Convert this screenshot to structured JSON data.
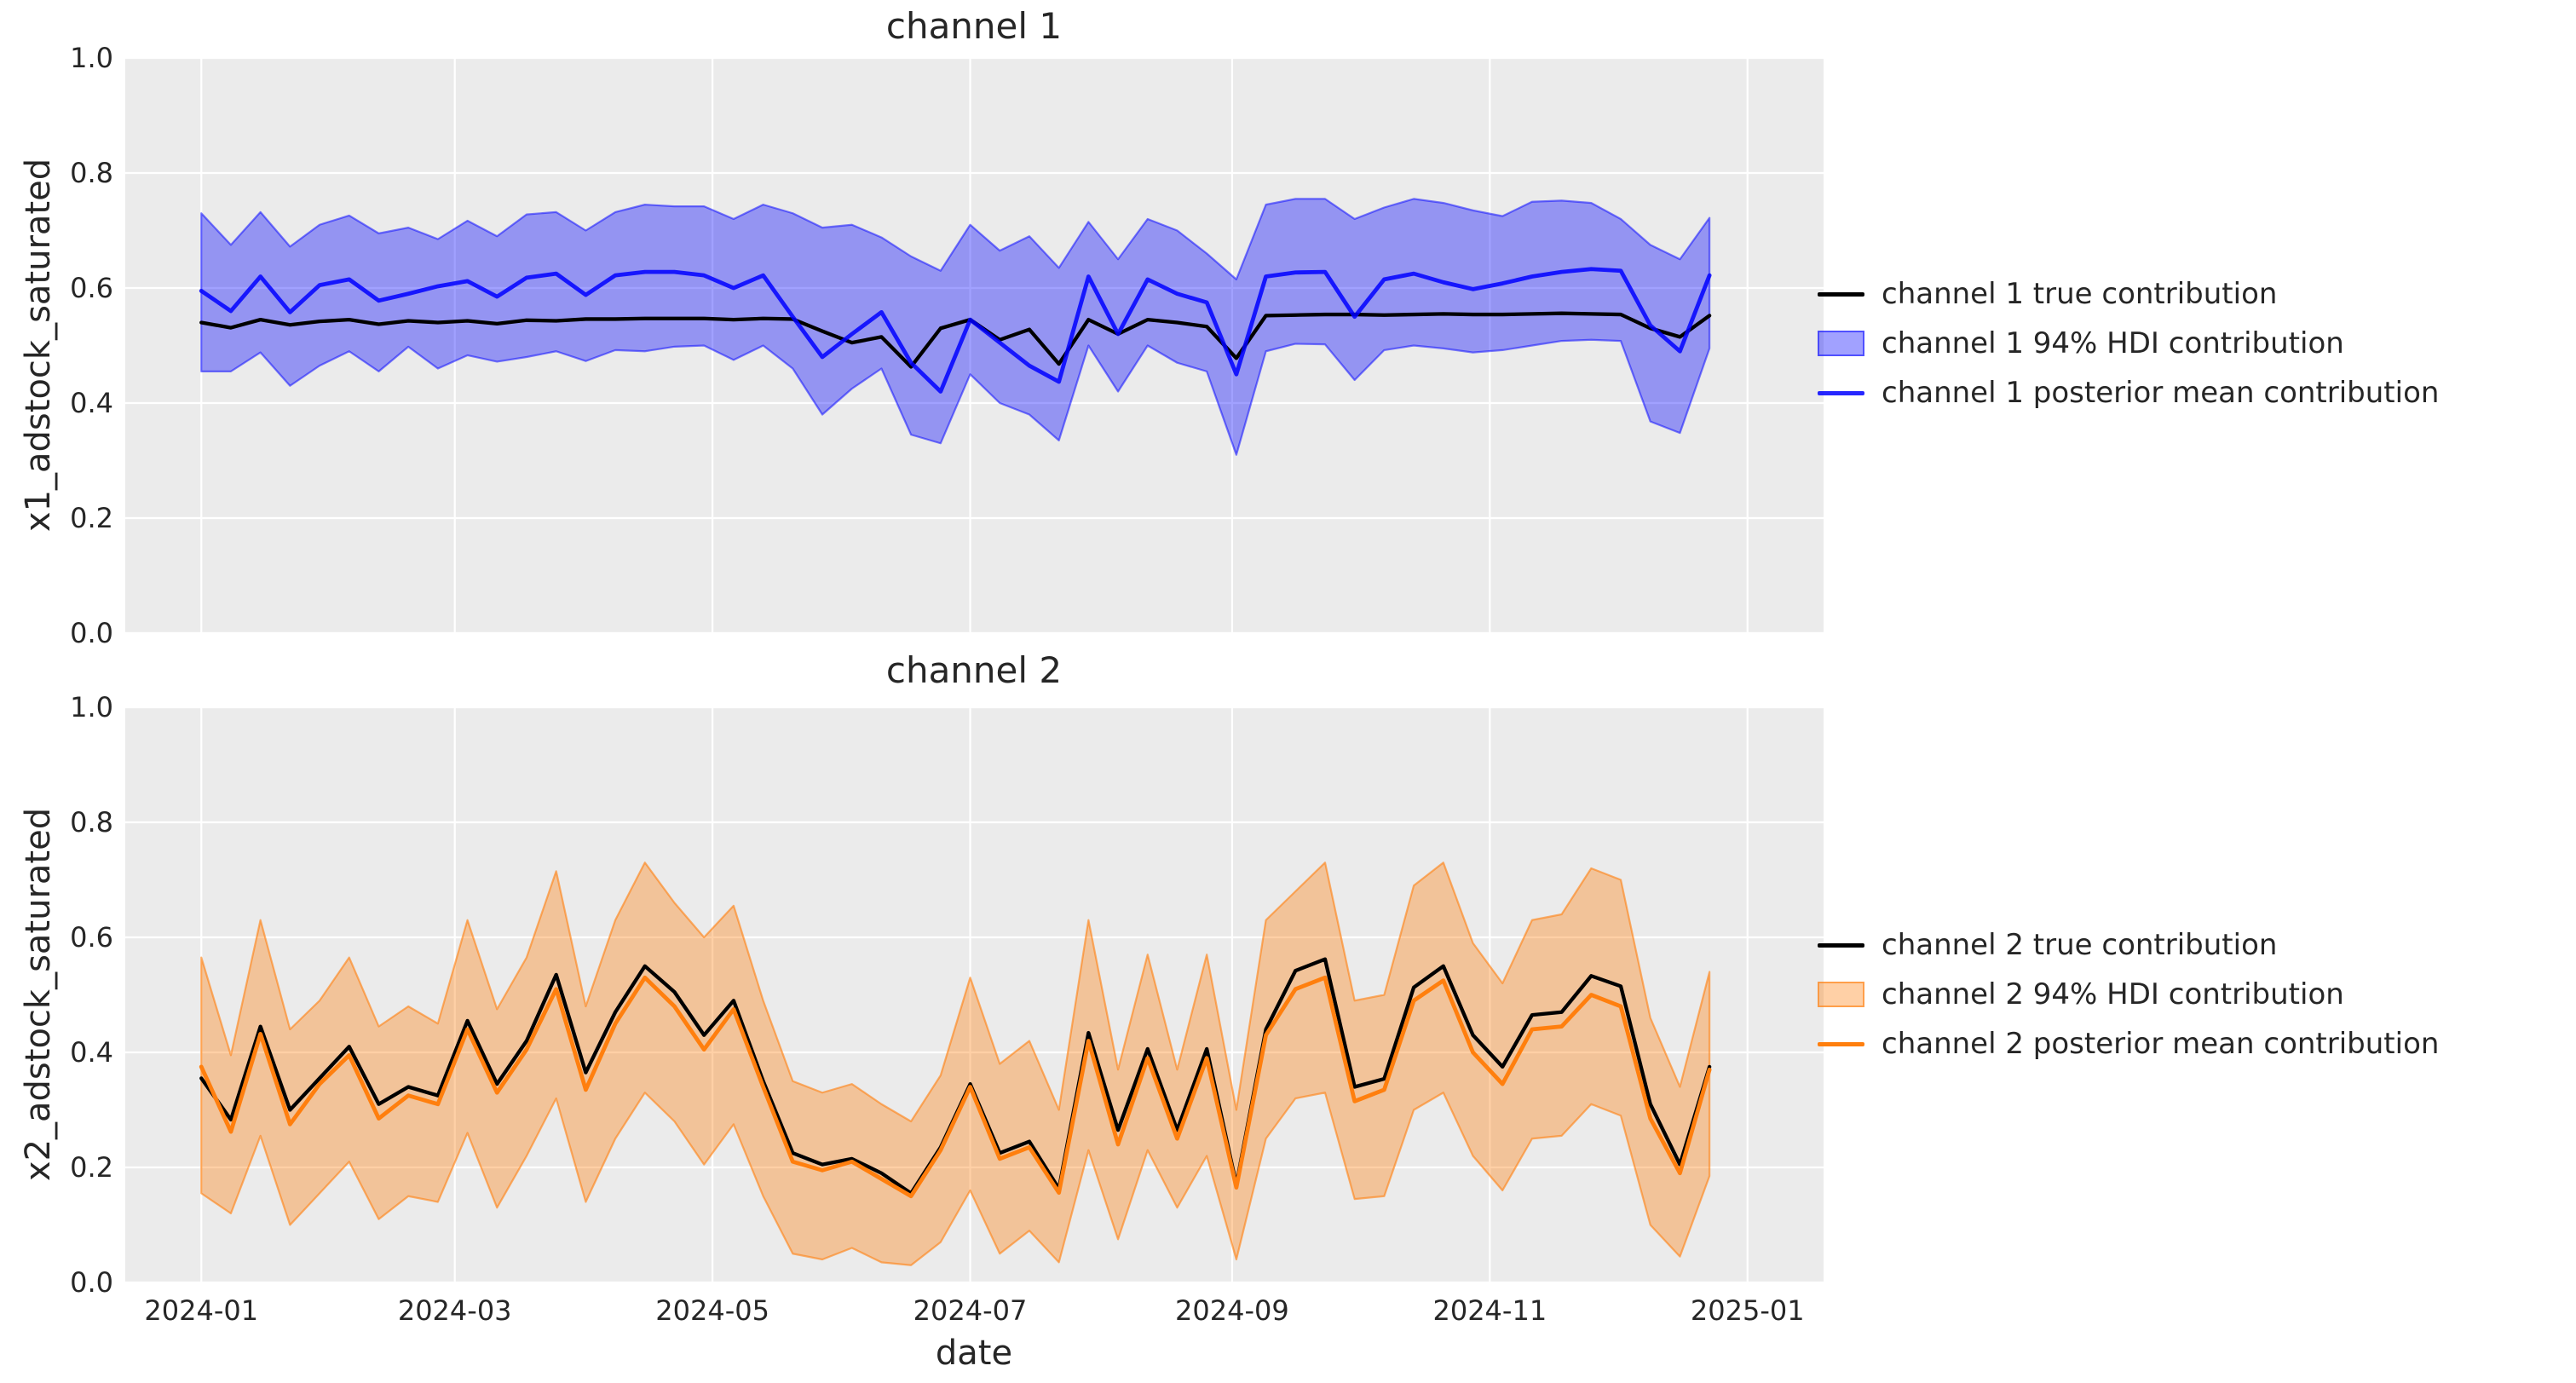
{
  "xlabel": "date",
  "text_color": "#262626",
  "xticks": {
    "t_days": [
      0,
      60,
      121,
      182,
      244,
      305,
      366
    ],
    "labels": [
      "2024-01",
      "2024-03",
      "2024-05",
      "2024-07",
      "2024-09",
      "2024-11",
      "2025-01"
    ]
  },
  "chart_data": [
    {
      "type": "line",
      "title": "channel 1",
      "ylabel": "x1_adstock_saturated",
      "xlabel": "",
      "ylim": [
        0.0,
        1.0
      ],
      "yticks": [
        0.0,
        0.2,
        0.4,
        0.6,
        0.8,
        1.0
      ],
      "ytick_labels": [
        "0.0",
        "0.2",
        "0.4",
        "0.6",
        "0.8",
        "1.0"
      ],
      "grid": true,
      "background": "#ebebeb",
      "gridline_color": "#ffffff",
      "legend_position": "right",
      "x_frequency": "weekly",
      "dates": [
        "2024-01-01",
        "2024-01-08",
        "2024-01-15",
        "2024-01-22",
        "2024-01-29",
        "2024-02-05",
        "2024-02-12",
        "2024-02-19",
        "2024-02-26",
        "2024-03-04",
        "2024-03-11",
        "2024-03-18",
        "2024-03-25",
        "2024-04-01",
        "2024-04-08",
        "2024-04-15",
        "2024-04-22",
        "2024-04-29",
        "2024-05-06",
        "2024-05-13",
        "2024-05-20",
        "2024-05-27",
        "2024-06-03",
        "2024-06-10",
        "2024-06-17",
        "2024-06-24",
        "2024-07-01",
        "2024-07-08",
        "2024-07-15",
        "2024-07-22",
        "2024-07-29",
        "2024-08-05",
        "2024-08-12",
        "2024-08-19",
        "2024-08-26",
        "2024-09-02",
        "2024-09-09",
        "2024-09-16",
        "2024-09-23",
        "2024-09-30",
        "2024-10-07",
        "2024-10-14",
        "2024-10-21",
        "2024-10-28",
        "2024-11-04",
        "2024-11-11",
        "2024-11-18",
        "2024-11-25",
        "2024-12-02",
        "2024-12-09",
        "2024-12-16",
        "2024-12-23"
      ],
      "series": [
        {
          "name": "channel 1 true contribution",
          "style": "line",
          "color": "#000000",
          "opacity": 1,
          "values": [
            0.54,
            0.531,
            0.545,
            0.536,
            0.542,
            0.545,
            0.537,
            0.543,
            0.54,
            0.543,
            0.538,
            0.544,
            0.543,
            0.546,
            0.546,
            0.547,
            0.547,
            0.547,
            0.545,
            0.547,
            0.546,
            0.525,
            0.505,
            0.515,
            0.463,
            0.53,
            0.545,
            0.51,
            0.528,
            0.468,
            0.545,
            0.52,
            0.545,
            0.54,
            0.533,
            0.478,
            0.552,
            0.553,
            0.554,
            0.554,
            0.553,
            0.554,
            0.555,
            0.554,
            0.554,
            0.555,
            0.556,
            0.555,
            0.554,
            0.53,
            0.515,
            0.552
          ]
        },
        {
          "name": "channel 1 94% HDI contribution",
          "style": "band",
          "color": "#0000ff",
          "fill_opacity": 0.37,
          "edge_opacity": 0.5,
          "low": [
            0.455,
            0.455,
            0.488,
            0.43,
            0.465,
            0.49,
            0.455,
            0.498,
            0.46,
            0.483,
            0.472,
            0.48,
            0.49,
            0.473,
            0.492,
            0.49,
            0.498,
            0.5,
            0.475,
            0.5,
            0.46,
            0.38,
            0.425,
            0.46,
            0.345,
            0.33,
            0.45,
            0.4,
            0.38,
            0.335,
            0.5,
            0.42,
            0.5,
            0.47,
            0.455,
            0.31,
            0.49,
            0.503,
            0.502,
            0.44,
            0.492,
            0.5,
            0.495,
            0.488,
            0.492,
            0.5,
            0.508,
            0.51,
            0.508,
            0.368,
            0.348,
            0.495
          ],
          "high": [
            0.73,
            0.675,
            0.732,
            0.672,
            0.71,
            0.726,
            0.695,
            0.705,
            0.685,
            0.717,
            0.69,
            0.728,
            0.732,
            0.7,
            0.732,
            0.745,
            0.742,
            0.742,
            0.72,
            0.745,
            0.73,
            0.705,
            0.71,
            0.688,
            0.655,
            0.63,
            0.71,
            0.665,
            0.69,
            0.635,
            0.715,
            0.65,
            0.72,
            0.7,
            0.66,
            0.615,
            0.745,
            0.755,
            0.755,
            0.72,
            0.74,
            0.755,
            0.748,
            0.735,
            0.725,
            0.75,
            0.752,
            0.748,
            0.72,
            0.675,
            0.65,
            0.722
          ]
        },
        {
          "name": "channel 1 posterior mean contribution",
          "style": "line",
          "color": "#0000ff",
          "opacity": 0.85,
          "values": [
            0.595,
            0.56,
            0.62,
            0.558,
            0.605,
            0.615,
            0.578,
            0.59,
            0.603,
            0.612,
            0.585,
            0.618,
            0.625,
            0.588,
            0.622,
            0.628,
            0.628,
            0.622,
            0.6,
            0.622,
            0.55,
            0.48,
            0.52,
            0.558,
            0.47,
            0.42,
            0.545,
            0.505,
            0.465,
            0.437,
            0.62,
            0.52,
            0.615,
            0.59,
            0.575,
            0.45,
            0.62,
            0.627,
            0.628,
            0.55,
            0.615,
            0.625,
            0.61,
            0.598,
            0.608,
            0.62,
            0.628,
            0.633,
            0.63,
            0.535,
            0.49,
            0.622
          ]
        }
      ]
    },
    {
      "type": "line",
      "title": "channel 2",
      "ylabel": "x2_adstock_saturated",
      "xlabel": "date",
      "ylim": [
        0.0,
        1.0
      ],
      "yticks": [
        0.0,
        0.2,
        0.4,
        0.6,
        0.8,
        1.0
      ],
      "ytick_labels": [
        "0.0",
        "0.2",
        "0.4",
        "0.6",
        "0.8",
        "1.0"
      ],
      "grid": true,
      "background": "#ebebeb",
      "gridline_color": "#ffffff",
      "legend_position": "right",
      "x_frequency": "weekly",
      "dates": [
        "2024-01-01",
        "2024-01-08",
        "2024-01-15",
        "2024-01-22",
        "2024-01-29",
        "2024-02-05",
        "2024-02-12",
        "2024-02-19",
        "2024-02-26",
        "2024-03-04",
        "2024-03-11",
        "2024-03-18",
        "2024-03-25",
        "2024-04-01",
        "2024-04-08",
        "2024-04-15",
        "2024-04-22",
        "2024-04-29",
        "2024-05-06",
        "2024-05-13",
        "2024-05-20",
        "2024-05-27",
        "2024-06-03",
        "2024-06-10",
        "2024-06-17",
        "2024-06-24",
        "2024-07-01",
        "2024-07-08",
        "2024-07-15",
        "2024-07-22",
        "2024-07-29",
        "2024-08-05",
        "2024-08-12",
        "2024-08-19",
        "2024-08-26",
        "2024-09-02",
        "2024-09-09",
        "2024-09-16",
        "2024-09-23",
        "2024-09-30",
        "2024-10-07",
        "2024-10-14",
        "2024-10-21",
        "2024-10-28",
        "2024-11-04",
        "2024-11-11",
        "2024-11-18",
        "2024-11-25",
        "2024-12-02",
        "2024-12-09",
        "2024-12-16",
        "2024-12-23"
      ],
      "series": [
        {
          "name": "channel 2 true contribution",
          "style": "line",
          "color": "#000000",
          "opacity": 1,
          "values": [
            0.355,
            0.283,
            0.445,
            0.3,
            0.355,
            0.41,
            0.31,
            0.34,
            0.325,
            0.455,
            0.345,
            0.42,
            0.535,
            0.365,
            0.47,
            0.55,
            0.505,
            0.43,
            0.49,
            0.35,
            0.225,
            0.205,
            0.215,
            0.19,
            0.155,
            0.235,
            0.345,
            0.225,
            0.245,
            0.163,
            0.434,
            0.265,
            0.406,
            0.265,
            0.406,
            0.17,
            0.44,
            0.542,
            0.562,
            0.34,
            0.354,
            0.513,
            0.55,
            0.43,
            0.375,
            0.465,
            0.47,
            0.533,
            0.515,
            0.31,
            0.205,
            0.375
          ]
        },
        {
          "name": "channel 2 94% HDI contribution",
          "style": "band",
          "color": "#ff7f0e",
          "fill_opacity": 0.37,
          "edge_opacity": 0.6,
          "low": [
            0.155,
            0.12,
            0.255,
            0.1,
            0.155,
            0.21,
            0.11,
            0.15,
            0.14,
            0.26,
            0.13,
            0.22,
            0.32,
            0.14,
            0.25,
            0.33,
            0.28,
            0.205,
            0.275,
            0.15,
            0.05,
            0.04,
            0.06,
            0.035,
            0.03,
            0.07,
            0.16,
            0.05,
            0.09,
            0.035,
            0.23,
            0.075,
            0.23,
            0.13,
            0.22,
            0.04,
            0.25,
            0.32,
            0.33,
            0.145,
            0.15,
            0.3,
            0.33,
            0.22,
            0.16,
            0.25,
            0.255,
            0.31,
            0.29,
            0.1,
            0.045,
            0.185
          ],
          "high": [
            0.565,
            0.395,
            0.63,
            0.44,
            0.49,
            0.565,
            0.445,
            0.48,
            0.45,
            0.63,
            0.475,
            0.565,
            0.715,
            0.48,
            0.63,
            0.73,
            0.66,
            0.6,
            0.655,
            0.49,
            0.35,
            0.33,
            0.345,
            0.31,
            0.28,
            0.36,
            0.53,
            0.38,
            0.42,
            0.3,
            0.63,
            0.37,
            0.57,
            0.37,
            0.57,
            0.3,
            0.63,
            0.68,
            0.73,
            0.49,
            0.5,
            0.69,
            0.73,
            0.59,
            0.52,
            0.63,
            0.64,
            0.72,
            0.7,
            0.46,
            0.34,
            0.54
          ]
        },
        {
          "name": "channel 2 posterior mean contribution",
          "style": "line",
          "color": "#ff7f0e",
          "opacity": 1,
          "values": [
            0.375,
            0.262,
            0.432,
            0.275,
            0.345,
            0.395,
            0.285,
            0.325,
            0.31,
            0.44,
            0.33,
            0.405,
            0.51,
            0.335,
            0.45,
            0.53,
            0.48,
            0.405,
            0.475,
            0.34,
            0.21,
            0.195,
            0.21,
            0.18,
            0.15,
            0.23,
            0.34,
            0.215,
            0.235,
            0.156,
            0.42,
            0.24,
            0.39,
            0.25,
            0.39,
            0.165,
            0.43,
            0.51,
            0.53,
            0.315,
            0.335,
            0.49,
            0.525,
            0.4,
            0.345,
            0.44,
            0.445,
            0.5,
            0.48,
            0.285,
            0.19,
            0.37
          ]
        }
      ]
    }
  ]
}
